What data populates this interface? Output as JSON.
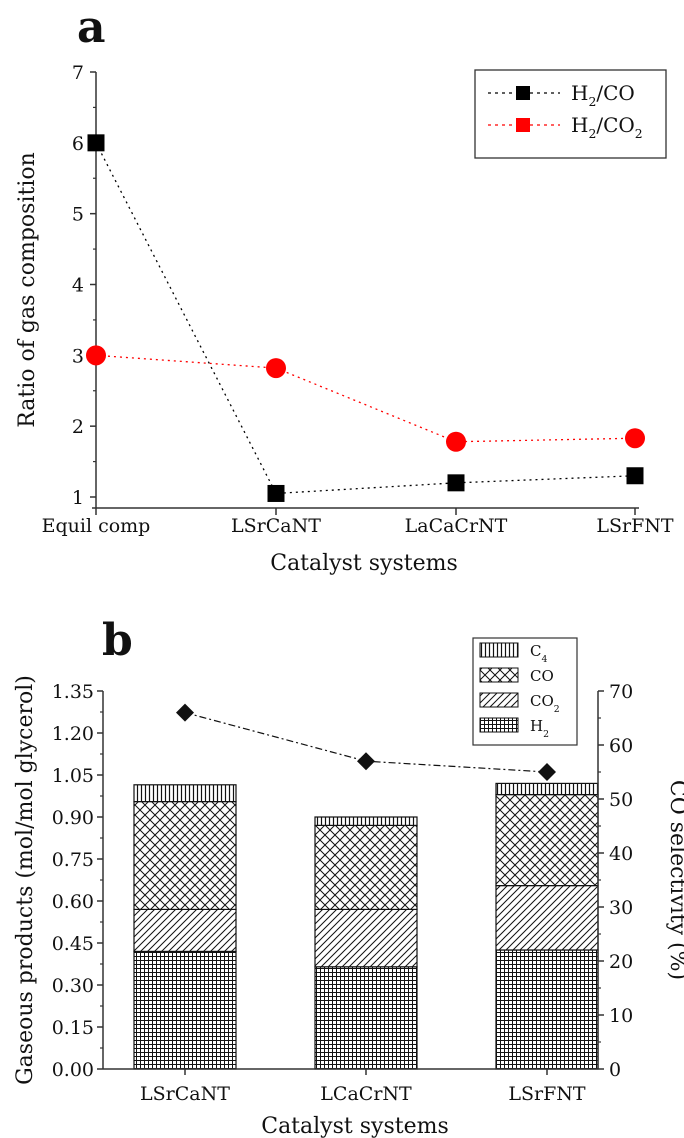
{
  "panel_a": {
    "letter": "a"
  },
  "panel_b": {
    "letter": "b"
  },
  "chart_data": [
    {
      "type": "line",
      "panel": "a",
      "categories": [
        "Equil comp",
        "LSrCaNT",
        "LaCaCrNT",
        "LSrFNT"
      ],
      "series": [
        {
          "name": "H2/CO",
          "name_main": "H",
          "name_sub1": "2",
          "name_rest": "/CO",
          "name_sub2": "",
          "values": [
            6.0,
            1.05,
            1.2,
            1.3
          ],
          "color": "#000000",
          "marker": "square"
        },
        {
          "name": "H2/CO2",
          "name_main": "H",
          "name_sub1": "2",
          "name_rest": "/CO",
          "name_sub2": "2",
          "values": [
            3.0,
            2.82,
            1.78,
            1.83
          ],
          "color": "#ff0000",
          "marker": "circle"
        }
      ],
      "xlabel": "Catalyst systems",
      "ylabel": "Ratio of gas composition",
      "ylim": [
        1,
        7
      ],
      "yticks": [
        "1",
        "2",
        "3",
        "4",
        "5",
        "6",
        "7"
      ],
      "legend": "top-right",
      "grid": false
    },
    {
      "type": "bar",
      "panel": "b",
      "stacked": true,
      "categories": [
        "LSrCaNT",
        "LCaCrNT",
        "LSrFNT"
      ],
      "series": [
        {
          "name": "H2",
          "main": "H",
          "sub": "2",
          "values": [
            0.42,
            0.365,
            0.425
          ],
          "pattern": "grid"
        },
        {
          "name": "CO2",
          "main": "CO",
          "sub": "2",
          "values": [
            0.15,
            0.205,
            0.23
          ],
          "pattern": "diagonal"
        },
        {
          "name": "CO",
          "main": "CO",
          "sub": "",
          "values": [
            0.385,
            0.3,
            0.325
          ],
          "pattern": "crosshatch"
        },
        {
          "name": "C4",
          "main": "C",
          "sub": "4",
          "values": [
            0.06,
            0.03,
            0.04
          ],
          "pattern": "vertical"
        }
      ],
      "secondary_series": {
        "name": "CO selectivity",
        "values": [
          66,
          57,
          55
        ],
        "marker": "diamond",
        "color": "#000000"
      },
      "xlabel": "Catalyst systems",
      "ylabel": "Gaseous products (mol/mol glycerol)",
      "ylabel_right": "CO selectivity (%)",
      "ylim": [
        0,
        1.35
      ],
      "ylim_right": [
        0,
        70
      ],
      "yticks": [
        "0.00",
        "0.15",
        "0.30",
        "0.45",
        "0.60",
        "0.75",
        "0.90",
        "1.05",
        "1.20",
        "1.35"
      ],
      "yticks_right": [
        "0",
        "10",
        "20",
        "30",
        "40",
        "50",
        "60",
        "70"
      ],
      "legend": "top-center",
      "grid": false
    }
  ]
}
